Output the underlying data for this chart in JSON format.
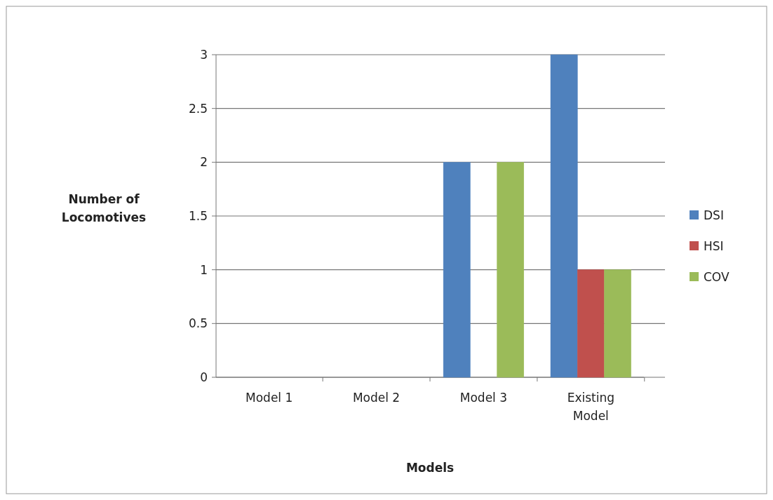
{
  "chart_data": {
    "type": "bar",
    "xlabel": "Models",
    "ylabel": "Number of Locomotives",
    "categories": [
      "Model 1",
      "Model 2",
      "Model 3",
      "Existing Model"
    ],
    "series": [
      {
        "name": "DSI",
        "color": "#4f81bd",
        "values": [
          0,
          0,
          2,
          3
        ]
      },
      {
        "name": "HSI",
        "color": "#c0504d",
        "values": [
          0,
          0,
          0,
          1
        ]
      },
      {
        "name": "COV",
        "color": "#9bbb59",
        "values": [
          0,
          0,
          2,
          1
        ]
      }
    ],
    "ylim": [
      0,
      3
    ],
    "yticks": [
      0,
      0.5,
      1,
      1.5,
      2,
      2.5,
      3
    ],
    "grid": "y",
    "legend": "right"
  }
}
